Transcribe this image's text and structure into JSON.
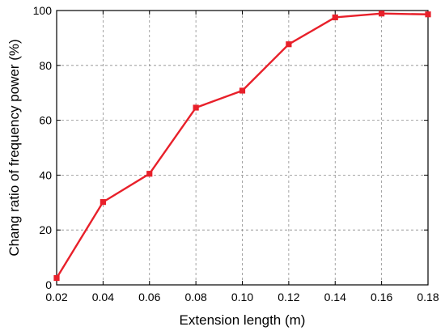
{
  "chart_data": {
    "type": "line",
    "xlabel": "Extension length (m)",
    "ylabel": "Chang ratio of frequency power (%)",
    "xlim": [
      0.02,
      0.18
    ],
    "ylim": [
      0,
      100
    ],
    "x_ticks": [
      "0.02",
      "0.04",
      "0.06",
      "0.08",
      "0.10",
      "0.12",
      "0.14",
      "0.16",
      "0.18"
    ],
    "y_ticks": [
      "0",
      "20",
      "40",
      "60",
      "80",
      "100"
    ],
    "grid": true,
    "series": [
      {
        "color": "#e8202a",
        "marker": "square",
        "x": [
          0.02,
          0.04,
          0.06,
          0.08,
          0.1,
          0.12,
          0.14,
          0.16,
          0.18
        ],
        "y": [
          2.5,
          30.2,
          40.5,
          64.6,
          70.8,
          87.7,
          97.5,
          98.9,
          98.6
        ]
      }
    ]
  }
}
